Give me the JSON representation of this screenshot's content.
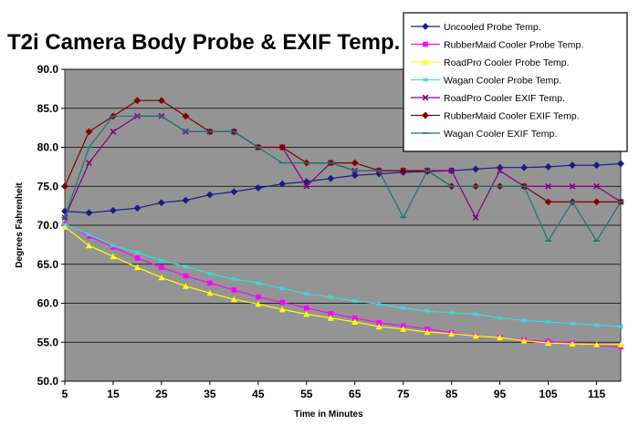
{
  "chart_data": {
    "type": "line",
    "title": "T2i Camera Body Probe & EXIF Temp.",
    "xlabel": "Time in Minutes",
    "ylabel": "Degrees Fahrenheit",
    "ylim": [
      50,
      90
    ],
    "xlim": [
      5,
      120
    ],
    "x_ticks": [
      "5",
      "15",
      "25",
      "35",
      "45",
      "55",
      "65",
      "75",
      "85",
      "95",
      "105",
      "115"
    ],
    "y_ticks": [
      "90.0",
      "85.0",
      "80.0",
      "75.0",
      "70.0",
      "65.0",
      "60.0",
      "55.0",
      "50.0"
    ],
    "grid": true,
    "legend_position": "top-right",
    "x": [
      5,
      10,
      15,
      20,
      25,
      30,
      35,
      40,
      45,
      50,
      55,
      60,
      65,
      70,
      75,
      80,
      85,
      90,
      95,
      100,
      105,
      110,
      115,
      120
    ],
    "series": [
      {
        "name": "Uncooled Probe Temp.",
        "color": "#1a1a8c",
        "marker": "diamond",
        "values": [
          71.8,
          71.6,
          71.9,
          72.2,
          72.9,
          73.2,
          73.9,
          74.3,
          74.8,
          75.3,
          75.6,
          76.0,
          76.4,
          76.6,
          76.8,
          76.9,
          77.0,
          77.2,
          77.4,
          77.4,
          77.5,
          77.7,
          77.7,
          77.9
        ]
      },
      {
        "name": "RubberMaid Cooler Probe Temp.",
        "color": "#ff00ff",
        "marker": "square",
        "values": [
          70.2,
          68.6,
          67.2,
          65.8,
          64.6,
          63.5,
          62.6,
          61.7,
          60.8,
          60.1,
          59.4,
          58.7,
          58.1,
          57.5,
          57.1,
          56.7,
          56.2,
          55.8,
          55.6,
          55.3,
          55.1,
          54.9,
          54.6,
          54.4
        ]
      },
      {
        "name": "RoadPro Cooler Probe Temp.",
        "color": "#ffff00",
        "marker": "triangle",
        "values": [
          69.8,
          67.4,
          66.0,
          64.6,
          63.3,
          62.2,
          61.3,
          60.5,
          59.9,
          59.2,
          58.6,
          58.1,
          57.6,
          57.0,
          56.7,
          56.3,
          56.1,
          55.8,
          55.6,
          55.2,
          54.9,
          54.8,
          54.7,
          54.7
        ]
      },
      {
        "name": "Wagan Cooler Probe Temp.",
        "color": "#33e0e0",
        "marker": "star",
        "values": [
          70.1,
          68.8,
          67.4,
          66.5,
          65.5,
          64.7,
          63.8,
          63.1,
          62.6,
          61.9,
          61.2,
          60.8,
          60.3,
          59.9,
          59.4,
          59.0,
          58.8,
          58.6,
          58.1,
          57.8,
          57.6,
          57.4,
          57.2,
          57.0
        ]
      },
      {
        "name": "RoadPro Cooler EXIF Temp.",
        "color": "#80007f",
        "marker": "cross",
        "values": [
          71,
          78,
          82,
          84,
          84,
          82,
          82,
          82,
          80,
          80,
          75,
          78,
          77,
          77,
          77,
          77,
          77,
          71,
          77,
          75,
          75,
          75,
          75,
          73
        ]
      },
      {
        "name": "RubberMaid Cooler EXIF Temp.",
        "color": "#800000",
        "marker": "diamond",
        "values": [
          75,
          82,
          84,
          86,
          86,
          84,
          82,
          82,
          80,
          80,
          78,
          78,
          78,
          77,
          77,
          77,
          75,
          75,
          75,
          75,
          73,
          73,
          73,
          73
        ]
      },
      {
        "name": "Wagan Cooler EXIF Temp.",
        "color": "#147878",
        "marker": "dash",
        "values": [
          71,
          80,
          84,
          84,
          84,
          82,
          82,
          82,
          80,
          78,
          78,
          78,
          77,
          77,
          71,
          77,
          75,
          75,
          75,
          75,
          68,
          73,
          68,
          73
        ]
      }
    ]
  }
}
